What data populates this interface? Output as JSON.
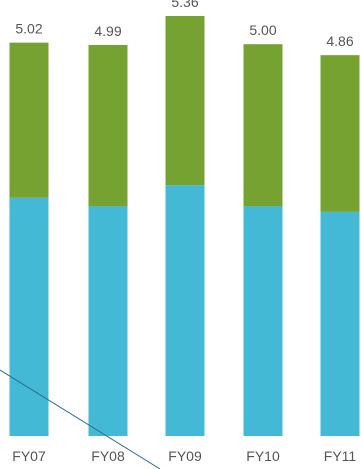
{
  "chart_data": {
    "type": "bar",
    "stacked": true,
    "categories": [
      "FY07",
      "FY08",
      "FY09",
      "FY10",
      "FY11"
    ],
    "totals": [
      5.02,
      4.99,
      5.36,
      5.0,
      4.86
    ],
    "total_labels": [
      "5.02",
      "4.99",
      "5.36",
      "5.00",
      "4.86"
    ],
    "series": [
      {
        "color": "#43b9d5",
        "values": [
          3.04,
          2.93,
          3.2,
          2.93,
          2.86
        ]
      },
      {
        "color": "#76a232",
        "values": [
          1.98,
          2.06,
          2.16,
          2.07,
          2.0
        ]
      }
    ],
    "grid": false,
    "legend": "none"
  }
}
